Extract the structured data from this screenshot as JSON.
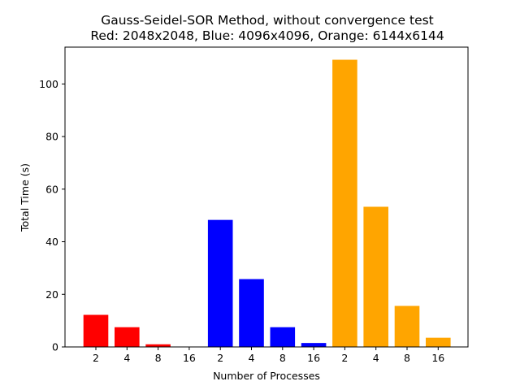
{
  "chart_data": {
    "type": "bar",
    "title_line1": "Gauss-Seidel-SOR Method, without convergence test",
    "title_line2": "Red: 2048x2048, Blue: 4096x4096, Orange: 6144x6144",
    "xlabel": "Number of Processes",
    "ylabel": "Total Time (s)",
    "ylim": [
      0,
      114
    ],
    "yticks": [
      0,
      20,
      40,
      60,
      80,
      100
    ],
    "grid": false,
    "legend": "none",
    "categories": [
      "2",
      "4",
      "8",
      "16",
      "2",
      "4",
      "8",
      "16",
      "2",
      "4",
      "8",
      "16"
    ],
    "bars": [
      {
        "label": "2",
        "value": 12.2,
        "color": "#ff0000"
      },
      {
        "label": "4",
        "value": 7.5,
        "color": "#ff0000"
      },
      {
        "label": "8",
        "value": 1.0,
        "color": "#ff0000"
      },
      {
        "label": "16",
        "value": 0.15,
        "color": "#ff0000"
      },
      {
        "label": "2",
        "value": 48.3,
        "color": "#0000ff"
      },
      {
        "label": "4",
        "value": 25.8,
        "color": "#0000ff"
      },
      {
        "label": "8",
        "value": 7.5,
        "color": "#0000ff"
      },
      {
        "label": "16",
        "value": 1.5,
        "color": "#0000ff"
      },
      {
        "label": "2",
        "value": 109.2,
        "color": "#ffa500"
      },
      {
        "label": "4",
        "value": 53.3,
        "color": "#ffa500"
      },
      {
        "label": "8",
        "value": 15.6,
        "color": "#ffa500"
      },
      {
        "label": "16",
        "value": 3.5,
        "color": "#ffa500"
      }
    ]
  }
}
